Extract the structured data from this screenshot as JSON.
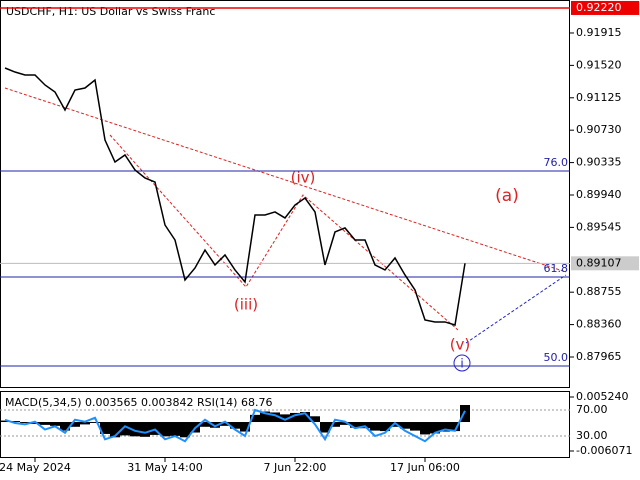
{
  "chart_data": [
    {
      "type": "line",
      "title": "USDCHF, H1:  US Dollar vs Swiss Franc",
      "color": "#000000",
      "categories": [
        null,
        null,
        null,
        "24 May 2024",
        null,
        null,
        null,
        null,
        null,
        null,
        null,
        null,
        null,
        null,
        null,
        null,
        "31 May 14:00",
        null,
        null,
        null,
        null,
        null,
        null,
        null,
        null,
        null,
        null,
        null,
        null,
        "7 Jun 22:00",
        null,
        null,
        null,
        null,
        null,
        null,
        null,
        null,
        null,
        null,
        null,
        null,
        "17 Jun 06:00",
        null,
        null,
        null,
        null
      ],
      "values": [
        0.91488,
        0.91439,
        0.91403,
        0.91403,
        0.91281,
        0.91195,
        0.90976,
        0.9122,
        0.91244,
        0.91342,
        0.9061,
        0.90342,
        0.90428,
        0.90245,
        0.90147,
        0.90098,
        0.89574,
        0.89391,
        0.88904,
        0.8905,
        0.89269,
        0.89087,
        0.89209,
        0.89026,
        0.88879,
        0.89696,
        0.89696,
        0.89733,
        0.8966,
        0.89818,
        0.89903,
        0.89733,
        0.89087,
        0.89489,
        0.89538,
        0.89391,
        0.89391,
        0.89087,
        0.89026,
        0.89172,
        0.88965,
        0.88782,
        0.88416,
        0.88392,
        0.88392,
        0.88355,
        0.89107
      ],
      "ylim": [
        0.87587,
        0.92317
      ],
      "yticks": [
        0.91915,
        {
          "value": 0.9152,
          "label": "0.91520"
        },
        0.91125,
        {
          "value": 0.9073,
          "label": "0.90730"
        },
        0.90335,
        {
          "value": 0.8994,
          "label": "0.89940"
        },
        0.89545,
        0.88755,
        {
          "value": 0.8836,
          "label": "0.88360"
        },
        0.87965
      ],
      "current_price": 0.89107,
      "level": {
        "value": 0.9222,
        "label": "0.92220"
      },
      "fib_levels": [
        {
          "value": 0.90233,
          "label": "76.0"
        },
        {
          "value": 0.8894,
          "label": "61.8"
        },
        {
          "value": 0.87855,
          "label": "50.0"
        }
      ],
      "annotations": [
        "(iv)",
        "(iii)",
        "(v)",
        "i",
        "(a)"
      ]
    },
    {
      "type": "bar",
      "title": "MACD(5,34,5) 0.003565 0.003842 RSI(14) 68.76",
      "ylim": [
        -0.007537,
        0.006287
      ],
      "yticks": [
        {
          "value": 0.00524,
          "label": "0.005240"
        },
        -0.006071
      ],
      "y2lim": [
        -3.8,
        97.7
      ],
      "y2ticks": [
        {
          "value": 70,
          "label": "70.00"
        },
        {
          "value": 30,
          "label": "30.00"
        }
      ],
      "series": [
        {
          "name": "MACD",
          "color": "#000000",
          "values": [
            0.0003,
            0.0002,
            -0.0002,
            -0.0004,
            -0.0006,
            -0.0008,
            -0.0018,
            -0.001,
            -0.0005,
            -0.0002,
            -0.0025,
            -0.0032,
            -0.0028,
            -0.003,
            -0.0031,
            -0.0027,
            -0.003,
            -0.0029,
            -0.0032,
            -0.0022,
            -0.001,
            -0.0012,
            -0.0008,
            -0.0014,
            -0.002,
            0.0015,
            0.0022,
            0.002,
            0.0016,
            0.0019,
            0.0021,
            0.0012,
            -0.0022,
            -0.001,
            -0.0006,
            -0.0012,
            -0.0013,
            -0.0018,
            -0.0019,
            -0.001,
            -0.0014,
            -0.0018,
            -0.0026,
            -0.0024,
            -0.002,
            -0.0019,
            0.003565
          ]
        },
        {
          "name": "RSI",
          "color": "#1e90ff",
          "axis": "y2",
          "values": [
            55,
            50,
            48,
            52,
            40,
            45,
            35,
            55,
            52,
            58,
            25,
            30,
            45,
            38,
            35,
            40,
            25,
            30,
            22,
            42,
            55,
            45,
            52,
            40,
            30,
            70,
            65,
            62,
            55,
            62,
            65,
            48,
            25,
            55,
            52,
            42,
            45,
            30,
            35,
            50,
            38,
            30,
            22,
            35,
            40,
            38,
            68.76
          ]
        }
      ]
    }
  ]
}
